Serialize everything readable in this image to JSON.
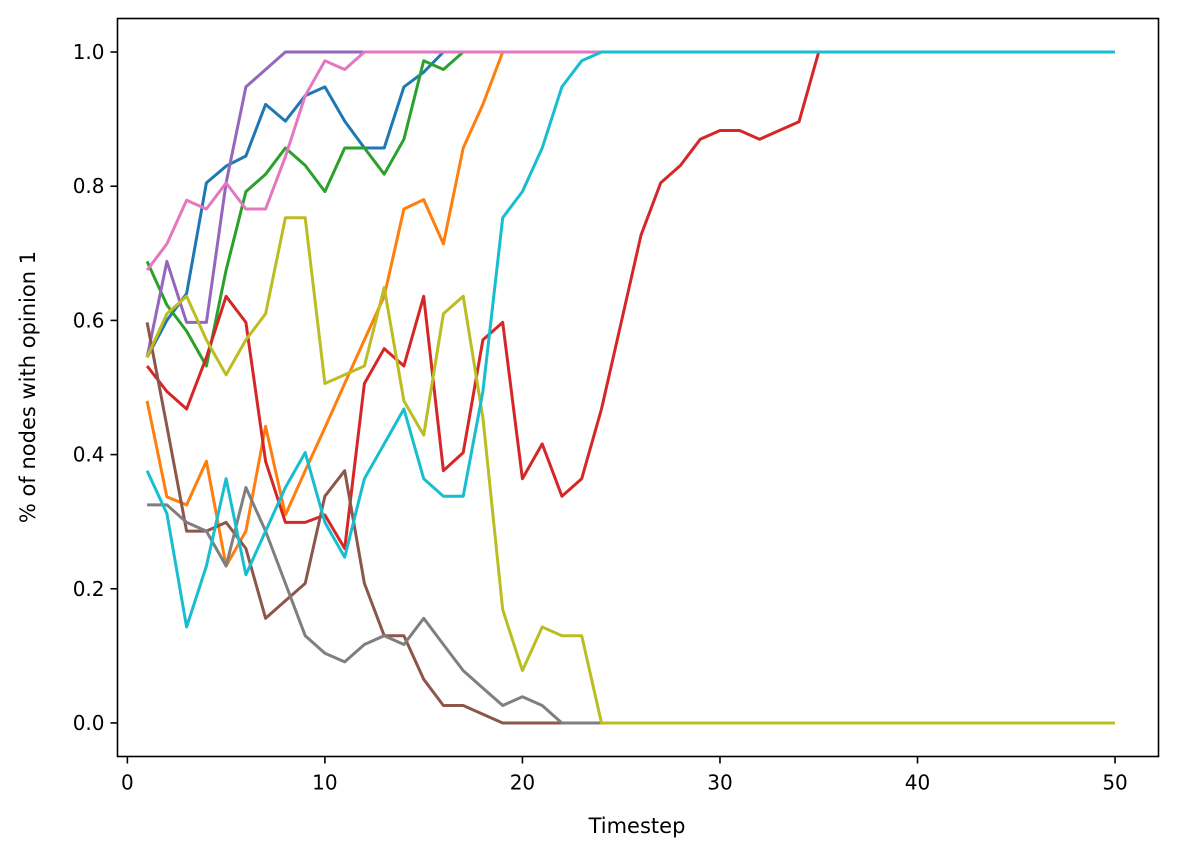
{
  "chart_data": {
    "type": "line",
    "title": "",
    "xlabel": "Timestep",
    "ylabel": "% of nodes with opinion 1",
    "xlim": [
      -0.5,
      52.2
    ],
    "ylim": [
      -0.05,
      1.05
    ],
    "xticks": [
      0,
      10,
      20,
      30,
      40,
      50
    ],
    "xtick_labels": [
      "0",
      "10",
      "20",
      "30",
      "40",
      "50"
    ],
    "yticks": [
      0.0,
      0.2,
      0.4,
      0.6,
      0.8,
      1.0
    ],
    "ytick_labels": [
      "0.0",
      "0.2",
      "0.4",
      "0.6",
      "0.8",
      "1.0"
    ],
    "grid": false,
    "legend": "none",
    "x_start": 1,
    "series": [
      {
        "color": "#1f77b4",
        "values": [
          0.545,
          0.6,
          0.64,
          0.805,
          0.83,
          0.845,
          0.922,
          0.897,
          0.935,
          0.948,
          0.897,
          0.857,
          0.857,
          0.948,
          0.97,
          1.0,
          1.0,
          1.0,
          1.0,
          1.0,
          1.0,
          1.0,
          1.0,
          1.0,
          1.0,
          1.0,
          1.0,
          1.0,
          1.0,
          1.0,
          1.0,
          1.0,
          1.0,
          1.0,
          1.0,
          1.0,
          1.0,
          1.0,
          1.0,
          1.0,
          1.0,
          1.0,
          1.0,
          1.0,
          1.0,
          1.0,
          1.0,
          1.0,
          1.0,
          1.0
        ]
      },
      {
        "color": "#ff7f0e",
        "values": [
          0.48,
          0.337,
          0.325,
          0.39,
          0.234,
          0.286,
          0.442,
          0.31,
          0.376,
          0.44,
          0.506,
          0.571,
          0.636,
          0.766,
          0.78,
          0.714,
          0.857,
          0.922,
          1.0,
          1.0,
          1.0,
          1.0,
          1.0,
          1.0,
          1.0,
          1.0,
          1.0,
          1.0,
          1.0,
          1.0,
          1.0,
          1.0,
          1.0,
          1.0,
          1.0,
          1.0,
          1.0,
          1.0,
          1.0,
          1.0,
          1.0,
          1.0,
          1.0,
          1.0,
          1.0,
          1.0,
          1.0,
          1.0,
          1.0,
          1.0
        ]
      },
      {
        "color": "#2ca02c",
        "values": [
          0.688,
          0.623,
          0.584,
          0.532,
          0.675,
          0.792,
          0.818,
          0.857,
          0.831,
          0.792,
          0.857,
          0.857,
          0.818,
          0.87,
          0.987,
          0.974,
          1.0,
          1.0,
          1.0,
          1.0,
          1.0,
          1.0,
          1.0,
          1.0,
          1.0,
          1.0,
          1.0,
          1.0,
          1.0,
          1.0,
          1.0,
          1.0,
          1.0,
          1.0,
          1.0,
          1.0,
          1.0,
          1.0,
          1.0,
          1.0,
          1.0,
          1.0,
          1.0,
          1.0,
          1.0,
          1.0,
          1.0,
          1.0,
          1.0,
          1.0
        ]
      },
      {
        "color": "#d62728",
        "values": [
          0.532,
          0.494,
          0.468,
          0.545,
          0.636,
          0.597,
          0.39,
          0.299,
          0.299,
          0.31,
          0.26,
          0.506,
          0.558,
          0.532,
          0.636,
          0.376,
          0.403,
          0.571,
          0.597,
          0.364,
          0.416,
          0.338,
          0.364,
          0.468,
          0.597,
          0.727,
          0.805,
          0.831,
          0.87,
          0.883,
          0.883,
          0.87,
          0.883,
          0.896,
          1.0,
          1.0,
          1.0,
          1.0,
          1.0,
          1.0,
          1.0,
          1.0,
          1.0,
          1.0,
          1.0,
          1.0,
          1.0,
          1.0,
          1.0,
          1.0
        ]
      },
      {
        "color": "#9467bd",
        "values": [
          0.545,
          0.688,
          0.597,
          0.597,
          0.805,
          0.948,
          0.974,
          1.0,
          1.0,
          1.0,
          1.0,
          1.0,
          1.0,
          1.0,
          1.0,
          1.0,
          1.0,
          1.0,
          1.0,
          1.0,
          1.0,
          1.0,
          1.0,
          1.0,
          1.0,
          1.0,
          1.0,
          1.0,
          1.0,
          1.0,
          1.0,
          1.0,
          1.0,
          1.0,
          1.0,
          1.0,
          1.0,
          1.0,
          1.0,
          1.0,
          1.0,
          1.0,
          1.0,
          1.0,
          1.0,
          1.0,
          1.0,
          1.0,
          1.0,
          1.0
        ]
      },
      {
        "color": "#8c564b",
        "values": [
          0.597,
          0.442,
          0.286,
          0.286,
          0.299,
          0.26,
          0.156,
          0.182,
          0.208,
          0.338,
          0.376,
          0.208,
          0.13,
          0.13,
          0.065,
          0.026,
          0.026,
          0.013,
          0.0,
          0.0,
          0.0,
          0.0,
          0.0,
          0.0,
          0.0,
          0.0,
          0.0,
          0.0,
          0.0,
          0.0,
          0.0,
          0.0,
          0.0,
          0.0,
          0.0,
          0.0,
          0.0,
          0.0,
          0.0,
          0.0,
          0.0,
          0.0,
          0.0,
          0.0,
          0.0,
          0.0,
          0.0,
          0.0,
          0.0,
          0.0
        ]
      },
      {
        "color": "#e377c2",
        "values": [
          0.675,
          0.714,
          0.779,
          0.766,
          0.805,
          0.766,
          0.766,
          0.844,
          0.935,
          0.987,
          0.974,
          1.0,
          1.0,
          1.0,
          1.0,
          1.0,
          1.0,
          1.0,
          1.0,
          1.0,
          1.0,
          1.0,
          1.0,
          1.0,
          1.0,
          1.0,
          1.0,
          1.0,
          1.0,
          1.0,
          1.0,
          1.0,
          1.0,
          1.0,
          1.0,
          1.0,
          1.0,
          1.0,
          1.0,
          1.0,
          1.0,
          1.0,
          1.0,
          1.0,
          1.0,
          1.0,
          1.0,
          1.0,
          1.0,
          1.0
        ]
      },
      {
        "color": "#7f7f7f",
        "values": [
          0.325,
          0.325,
          0.299,
          0.286,
          0.234,
          0.351,
          0.286,
          0.208,
          0.13,
          0.104,
          0.091,
          0.117,
          0.13,
          0.117,
          0.156,
          0.117,
          0.078,
          0.052,
          0.026,
          0.039,
          0.026,
          0.0,
          0.0,
          0.0,
          0.0,
          0.0,
          0.0,
          0.0,
          0.0,
          0.0,
          0.0,
          0.0,
          0.0,
          0.0,
          0.0,
          0.0,
          0.0,
          0.0,
          0.0,
          0.0,
          0.0,
          0.0,
          0.0,
          0.0,
          0.0,
          0.0,
          0.0,
          0.0,
          0.0,
          0.0
        ]
      },
      {
        "color": "#bcbd22",
        "values": [
          0.545,
          0.61,
          0.636,
          0.571,
          0.519,
          0.571,
          0.61,
          0.753,
          0.753,
          0.506,
          0.519,
          0.532,
          0.649,
          0.48,
          0.429,
          0.61,
          0.636,
          0.455,
          0.169,
          0.078,
          0.143,
          0.13,
          0.13,
          0.0,
          0.0,
          0.0,
          0.0,
          0.0,
          0.0,
          0.0,
          0.0,
          0.0,
          0.0,
          0.0,
          0.0,
          0.0,
          0.0,
          0.0,
          0.0,
          0.0,
          0.0,
          0.0,
          0.0,
          0.0,
          0.0,
          0.0,
          0.0,
          0.0,
          0.0,
          0.0
        ]
      },
      {
        "color": "#17becf",
        "values": [
          0.376,
          0.312,
          0.143,
          0.234,
          0.364,
          0.221,
          0.286,
          0.351,
          0.403,
          0.299,
          0.247,
          0.364,
          0.416,
          0.468,
          0.364,
          0.338,
          0.338,
          0.494,
          0.753,
          0.792,
          0.857,
          0.948,
          0.987,
          1.0,
          1.0,
          1.0,
          1.0,
          1.0,
          1.0,
          1.0,
          1.0,
          1.0,
          1.0,
          1.0,
          1.0,
          1.0,
          1.0,
          1.0,
          1.0,
          1.0,
          1.0,
          1.0,
          1.0,
          1.0,
          1.0,
          1.0,
          1.0,
          1.0,
          1.0,
          1.0
        ]
      }
    ]
  }
}
